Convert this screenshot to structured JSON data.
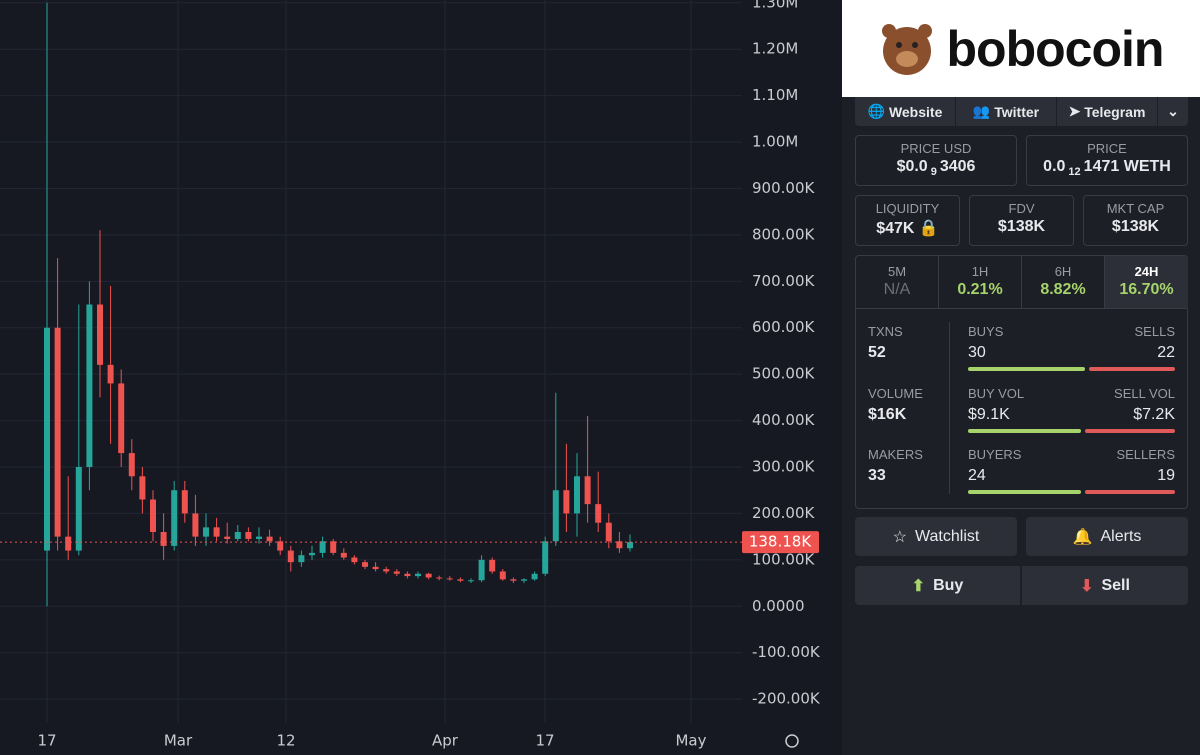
{
  "chart": {
    "type": "candlestick",
    "ylim": [
      -245000,
      1306000
    ],
    "yticks": [
      {
        "value": 1300000,
        "label": "1.30M"
      },
      {
        "value": 1200000,
        "label": "1.20M"
      },
      {
        "value": 1100000,
        "label": "1.10M"
      },
      {
        "value": 1000000,
        "label": "1.00M"
      },
      {
        "value": 900000,
        "label": "900.00K"
      },
      {
        "value": 800000,
        "label": "800.00K"
      },
      {
        "value": 700000,
        "label": "700.00K"
      },
      {
        "value": 600000,
        "label": "600.00K"
      },
      {
        "value": 500000,
        "label": "500.00K"
      },
      {
        "value": 400000,
        "label": "400.00K"
      },
      {
        "value": 300000,
        "label": "300.00K"
      },
      {
        "value": 200000,
        "label": "200.00K"
      },
      {
        "value": 100000,
        "label": "100.00K"
      },
      {
        "value": 0,
        "label": "0.0000"
      },
      {
        "value": -100000,
        "label": "-100.00K"
      },
      {
        "value": -200000,
        "label": "-200.00K"
      }
    ],
    "x_labels": [
      "17",
      "Mar",
      "12",
      "Apr",
      "17",
      "May"
    ],
    "up_color": "#26a69a",
    "down_color": "#ef5350",
    "last_price": {
      "value": 138180,
      "label": "138.18K"
    },
    "candles": [
      [
        120000,
        1300000,
        0,
        600000
      ],
      [
        600000,
        750000,
        120000,
        150000
      ],
      [
        150000,
        280000,
        100000,
        120000
      ],
      [
        120000,
        650000,
        110000,
        300000
      ],
      [
        300000,
        700000,
        250000,
        650000
      ],
      [
        650000,
        810000,
        450000,
        520000
      ],
      [
        520000,
        690000,
        350000,
        480000
      ],
      [
        480000,
        510000,
        300000,
        330000
      ],
      [
        330000,
        360000,
        250000,
        280000
      ],
      [
        280000,
        300000,
        200000,
        230000
      ],
      [
        230000,
        250000,
        140000,
        160000
      ],
      [
        160000,
        200000,
        100000,
        130000
      ],
      [
        130000,
        270000,
        120000,
        250000
      ],
      [
        250000,
        270000,
        180000,
        200000
      ],
      [
        200000,
        240000,
        130000,
        150000
      ],
      [
        150000,
        200000,
        130000,
        170000
      ],
      [
        170000,
        190000,
        140000,
        150000
      ],
      [
        150000,
        180000,
        135000,
        145000
      ],
      [
        145000,
        175000,
        140000,
        160000
      ],
      [
        160000,
        170000,
        140000,
        145000
      ],
      [
        145000,
        170000,
        135000,
        150000
      ],
      [
        150000,
        165000,
        130000,
        140000
      ],
      [
        140000,
        150000,
        110000,
        120000
      ],
      [
        120000,
        130000,
        75000,
        95000
      ],
      [
        95000,
        120000,
        85000,
        110000
      ],
      [
        110000,
        130000,
        100000,
        115000
      ],
      [
        115000,
        150000,
        105000,
        140000
      ],
      [
        140000,
        145000,
        110000,
        115000
      ],
      [
        115000,
        125000,
        100000,
        105000
      ],
      [
        105000,
        110000,
        90000,
        95000
      ],
      [
        95000,
        100000,
        80000,
        85000
      ],
      [
        85000,
        95000,
        75000,
        80000
      ],
      [
        80000,
        85000,
        70000,
        75000
      ],
      [
        75000,
        80000,
        65000,
        70000
      ],
      [
        70000,
        75000,
        60000,
        65000
      ],
      [
        65000,
        75000,
        60000,
        70000
      ],
      [
        70000,
        72000,
        58000,
        62000
      ],
      [
        62000,
        66000,
        56000,
        60000
      ],
      [
        60000,
        65000,
        55000,
        58000
      ],
      [
        58000,
        62000,
        52000,
        55000
      ],
      [
        55000,
        60000,
        50000,
        56000
      ],
      [
        56000,
        110000,
        52000,
        100000
      ],
      [
        100000,
        105000,
        70000,
        75000
      ],
      [
        75000,
        80000,
        55000,
        58000
      ],
      [
        58000,
        62000,
        50000,
        55000
      ],
      [
        55000,
        60000,
        50000,
        58000
      ],
      [
        58000,
        75000,
        55000,
        70000
      ],
      [
        70000,
        150000,
        65000,
        140000
      ],
      [
        140000,
        460000,
        130000,
        250000
      ],
      [
        250000,
        350000,
        160000,
        200000
      ],
      [
        200000,
        330000,
        150000,
        280000
      ],
      [
        280000,
        410000,
        180000,
        220000
      ],
      [
        220000,
        290000,
        160000,
        180000
      ],
      [
        180000,
        200000,
        125000,
        140000
      ],
      [
        140000,
        160000,
        115000,
        125000
      ],
      [
        125000,
        155000,
        118000,
        138180
      ]
    ]
  },
  "panel": {
    "brand": "bobocoin",
    "links": [
      "Website",
      "Twitter",
      "Telegram"
    ],
    "price_usd": {
      "label": "PRICE USD",
      "prefix": "$0.0",
      "zeros": "9",
      "digits": "3406"
    },
    "price": {
      "label": "PRICE",
      "prefix": "0.0",
      "zeros": "12",
      "digits": "1471 WETH"
    },
    "liquidity": {
      "label": "LIQUIDITY",
      "value": "$47K"
    },
    "fdv": {
      "label": "FDV",
      "value": "$138K"
    },
    "mkt_cap": {
      "label": "MKT CAP",
      "value": "$138K"
    },
    "timeframes": [
      {
        "label": "5M",
        "value": "N/A"
      },
      {
        "label": "1H",
        "value": "0.21%"
      },
      {
        "label": "6H",
        "value": "8.82%"
      },
      {
        "label": "24H",
        "value": "16.70%"
      }
    ],
    "txns": {
      "label": "TXNS",
      "value": 52
    },
    "volume": {
      "label": "VOLUME",
      "value": "$16K"
    },
    "makers": {
      "label": "MAKERS",
      "value": 33
    },
    "buys": {
      "label": "BUYS",
      "value": 30
    },
    "sells": {
      "label": "SELLS",
      "value": 22
    },
    "buy_vol": {
      "label": "BUY VOL",
      "value": "$9.1K"
    },
    "sell_vol": {
      "label": "SELL VOL",
      "value": "$7.2K"
    },
    "buyers": {
      "label": "BUYERS",
      "value": 24
    },
    "sellers": {
      "label": "SELLERS",
      "value": 19
    },
    "buttons": [
      "Watchlist",
      "Alerts",
      "Buy",
      "Sell"
    ]
  }
}
